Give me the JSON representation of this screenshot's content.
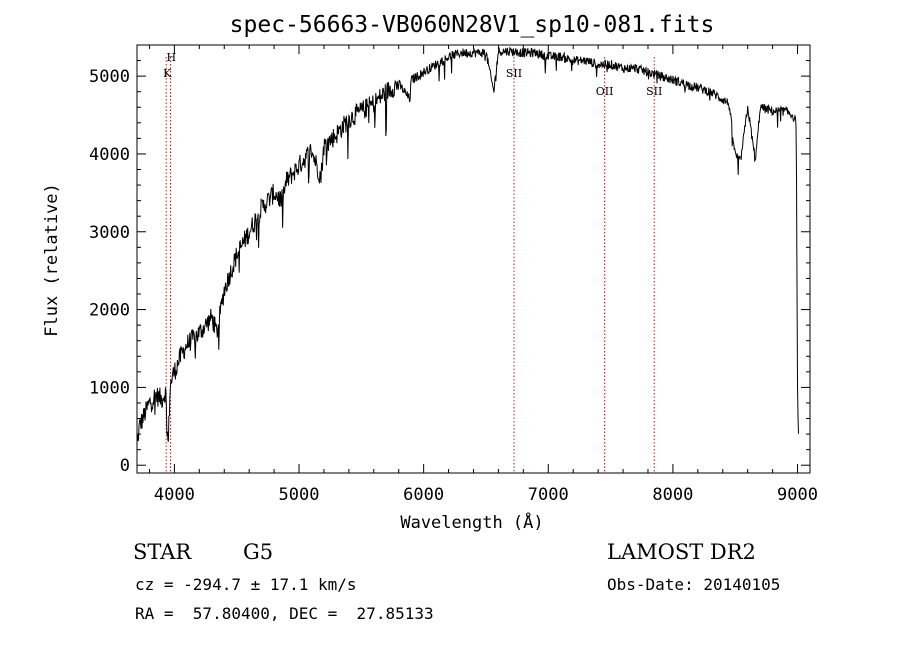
{
  "chart_data": {
    "type": "line",
    "title": "spec-56663-VB060N28V1_sp10-081.fits",
    "xlabel": "Wavelength (Å)",
    "ylabel": "Flux (relative)",
    "xlim": [
      3700,
      9100
    ],
    "ylim": [
      -100,
      5400
    ],
    "xticks": [
      4000,
      5000,
      6000,
      7000,
      8000,
      9000
    ],
    "yticks": [
      0,
      1000,
      2000,
      3000,
      4000,
      5000
    ],
    "spectrum_anchors": {
      "x": [
        3700,
        3720,
        3760,
        3800,
        3850,
        3900,
        3930,
        3950,
        3965,
        3985,
        4000,
        4050,
        4100,
        4200,
        4300,
        4340,
        4400,
        4500,
        4600,
        4700,
        4800,
        4861,
        4900,
        5000,
        5100,
        5175,
        5200,
        5300,
        5400,
        5500,
        5600,
        5700,
        5800,
        5890,
        5900,
        6000,
        6100,
        6200,
        6300,
        6400,
        6500,
        6563,
        6600,
        6700,
        6800,
        6900,
        7000,
        7100,
        7200,
        7300,
        7400,
        7500,
        7600,
        7700,
        7800,
        7900,
        8000,
        8100,
        8200,
        8300,
        8400,
        8450,
        8498,
        8542,
        8600,
        8662,
        8700,
        8800,
        8900,
        8960,
        8990,
        9000,
        9010
      ],
      "y": [
        250,
        500,
        650,
        800,
        900,
        850,
        950,
        200,
        1000,
        1150,
        1200,
        1400,
        1550,
        1700,
        1900,
        1700,
        2250,
        2700,
        3000,
        3300,
        3500,
        3400,
        3650,
        3850,
        4050,
        3700,
        4100,
        4250,
        4450,
        4550,
        4650,
        4800,
        4900,
        4700,
        4950,
        5050,
        5150,
        5250,
        5300,
        5300,
        5300,
        4800,
        5320,
        5320,
        5300,
        5300,
        5250,
        5250,
        5200,
        5200,
        5150,
        5150,
        5100,
        5100,
        5050,
        5000,
        4950,
        4900,
        4850,
        4800,
        4700,
        4650,
        4000,
        3900,
        4600,
        3900,
        4600,
        4550,
        4550,
        4500,
        4400,
        1000,
        200
      ]
    },
    "noise_amplitude": 60,
    "line_markers": [
      {
        "wavelength": 3934,
        "label": "K"
      },
      {
        "wavelength": 3969,
        "label": "H"
      },
      {
        "wavelength": 6725,
        "label": "SII"
      },
      {
        "wavelength": 7452,
        "label": "OII"
      },
      {
        "wavelength": 7850,
        "label": "SII"
      }
    ],
    "hk_label": {
      "top": "H",
      "bottom": "K"
    }
  },
  "info": {
    "class_label": "STAR",
    "subclass_label": "G5",
    "cz_text": "cz = -294.7 ± 17.1 km/s",
    "coords_text": "RA =  57.80400, DEC =  27.85133",
    "survey_label": "LAMOST DR2",
    "obs_date_text": "Obs-Date: 20140105"
  }
}
